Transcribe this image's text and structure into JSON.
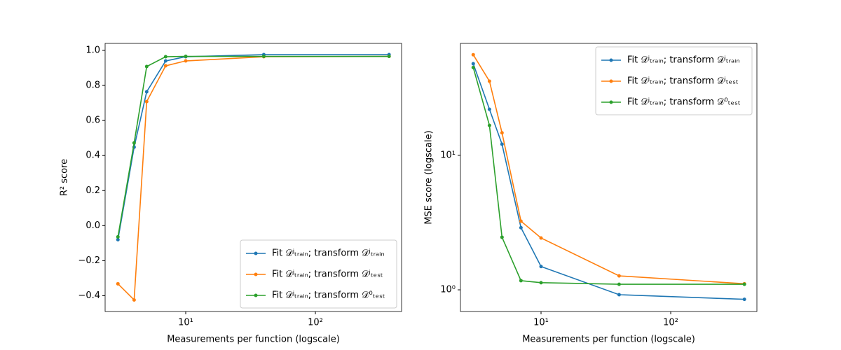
{
  "chart_data": [
    {
      "type": "line",
      "xlabel": "Measurements per function (logscale)",
      "ylabel": "R² score",
      "xscale": "log",
      "x": [
        3,
        4,
        5,
        7,
        10,
        40,
        370
      ],
      "xlim": [
        2.39,
        462
      ],
      "xticks": [
        {
          "value": 10,
          "label": "10¹"
        },
        {
          "value": 100,
          "label": "10²"
        }
      ],
      "ylim": [
        -0.49,
        1.04
      ],
      "yticks": [
        {
          "value": -0.4,
          "label": "−0.4"
        },
        {
          "value": -0.2,
          "label": "−0.2"
        },
        {
          "value": 0,
          "label": "0.0"
        },
        {
          "value": 0.2,
          "label": "0.2"
        },
        {
          "value": 0.4,
          "label": "0.4"
        },
        {
          "value": 0.6,
          "label": "0.6"
        },
        {
          "value": 0.8,
          "label": "0.8"
        },
        {
          "value": 1,
          "label": "1.0"
        }
      ],
      "legend": "lower right",
      "series": [
        {
          "name": "Fit 𝒟ʲₜᵣₐᵢₙ; transform 𝒟ʲₜᵣₐᵢₙ",
          "color": "#1f77b4",
          "values": [
            -0.08,
            0.448,
            0.764,
            0.94,
            0.964,
            0.976,
            0.976
          ]
        },
        {
          "name": "Fit 𝒟ʲₜᵣₐᵢₙ; transform 𝒟ʲₜₑₛₜ",
          "color": "#ff7f0e",
          "values": [
            -0.332,
            -0.424,
            0.708,
            0.912,
            0.94,
            0.964,
            0.966
          ]
        },
        {
          "name": "Fit 𝒟ʲₜᵣₐᵢₙ; transform 𝒟⁰ₜₑₛₜ",
          "color": "#2ca02c",
          "values": [
            -0.064,
            0.472,
            0.908,
            0.964,
            0.966,
            0.966,
            0.966
          ]
        }
      ]
    },
    {
      "type": "line",
      "xlabel": "Measurements per function (logscale)",
      "ylabel": "MSE score (logscale)",
      "xscale": "log",
      "yscale": "log",
      "x": [
        3,
        4,
        5,
        7,
        10,
        40,
        370
      ],
      "xlim": [
        2.39,
        462
      ],
      "xticks": [
        {
          "value": 10,
          "label": "10¹"
        },
        {
          "value": 100,
          "label": "10²"
        }
      ],
      "ylim": [
        0.69,
        68
      ],
      "yticks": [
        {
          "value": 1,
          "label": "10⁰"
        },
        {
          "value": 10,
          "label": "10¹"
        }
      ],
      "legend": "upper right",
      "series": [
        {
          "name": "Fit 𝒟ʲₜᵣₐᵢₙ; transform 𝒟ʲₜᵣₐᵢₙ",
          "color": "#1f77b4",
          "values": [
            48,
            22,
            12.1,
            2.9,
            1.49,
            0.92,
            0.85
          ]
        },
        {
          "name": "Fit 𝒟ʲₜᵣₐᵢₙ; transform 𝒟ʲₜₑₛₜ",
          "color": "#ff7f0e",
          "values": [
            56,
            35.6,
            14.7,
            3.24,
            2.43,
            1.27,
            1.11
          ]
        },
        {
          "name": "Fit 𝒟ʲₜᵣₐᵢₙ; transform 𝒟⁰ₜₑₛₜ",
          "color": "#2ca02c",
          "values": [
            45,
            16.7,
            2.46,
            1.17,
            1.13,
            1.1,
            1.1
          ]
        }
      ]
    }
  ]
}
